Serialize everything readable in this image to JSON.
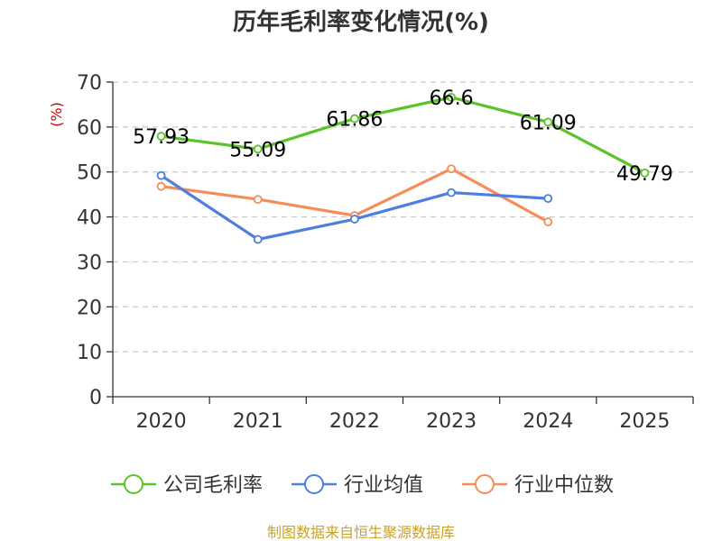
{
  "chart_data": {
    "type": "line",
    "title": "历年毛利率变化情况(%)",
    "ylabel": "(%)",
    "xlabel": "",
    "categories": [
      "2020",
      "2021",
      "2022",
      "2023",
      "2024",
      "2025"
    ],
    "ylim": [
      0,
      70
    ],
    "yticks": [
      0,
      10,
      20,
      30,
      40,
      50,
      60,
      70
    ],
    "grid": true,
    "legend_position": "bottom",
    "series": [
      {
        "name": "公司毛利率",
        "color": "#5cc22a",
        "values": [
          57.93,
          55.09,
          61.86,
          66.6,
          61.09,
          49.79
        ],
        "labels": [
          "57.93",
          "55.09",
          "61.86",
          "66.6",
          "61.09",
          "49.79"
        ],
        "show_labels": true
      },
      {
        "name": "行业均值",
        "color": "#4e7fdc",
        "values": [
          49.2,
          35.0,
          39.5,
          45.4,
          44.1,
          null
        ],
        "show_labels": false
      },
      {
        "name": "行业中位数",
        "color": "#f68c5a",
        "values": [
          46.8,
          43.9,
          40.3,
          50.7,
          38.9,
          null
        ],
        "show_labels": false
      }
    ],
    "source": "制图数据来自恒生聚源数据库"
  }
}
